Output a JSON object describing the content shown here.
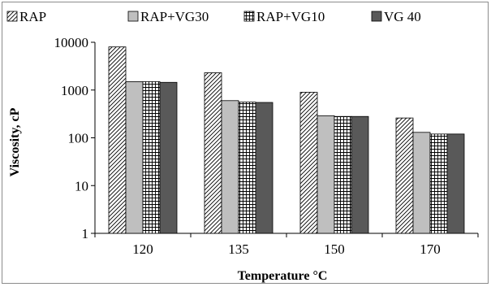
{
  "chart_data": {
    "type": "bar",
    "title": "",
    "xlabel": "Temperature °C",
    "ylabel": "Viscosity, cP",
    "yscale": "log",
    "ylim": [
      1,
      10000
    ],
    "yticks": [
      "1",
      "10",
      "100",
      "1000",
      "10000"
    ],
    "categories": [
      "120",
      "135",
      "150",
      "170"
    ],
    "legend_position": "top",
    "grid": false,
    "series": [
      {
        "name": "RAP",
        "values": [
          8000,
          2300,
          900,
          260
        ],
        "pattern": "diagonal-hatch",
        "color": "#ffffff"
      },
      {
        "name": "RAP+VG30",
        "values": [
          1500,
          600,
          290,
          130
        ],
        "pattern": "solid",
        "color": "#bfbfbf"
      },
      {
        "name": "RAP+VG10",
        "values": [
          1500,
          560,
          280,
          120
        ],
        "pattern": "grid-hatch",
        "color": "#ffffff"
      },
      {
        "name": "VG 40",
        "values": [
          1450,
          550,
          280,
          120
        ],
        "pattern": "solid",
        "color": "#595959"
      }
    ]
  }
}
